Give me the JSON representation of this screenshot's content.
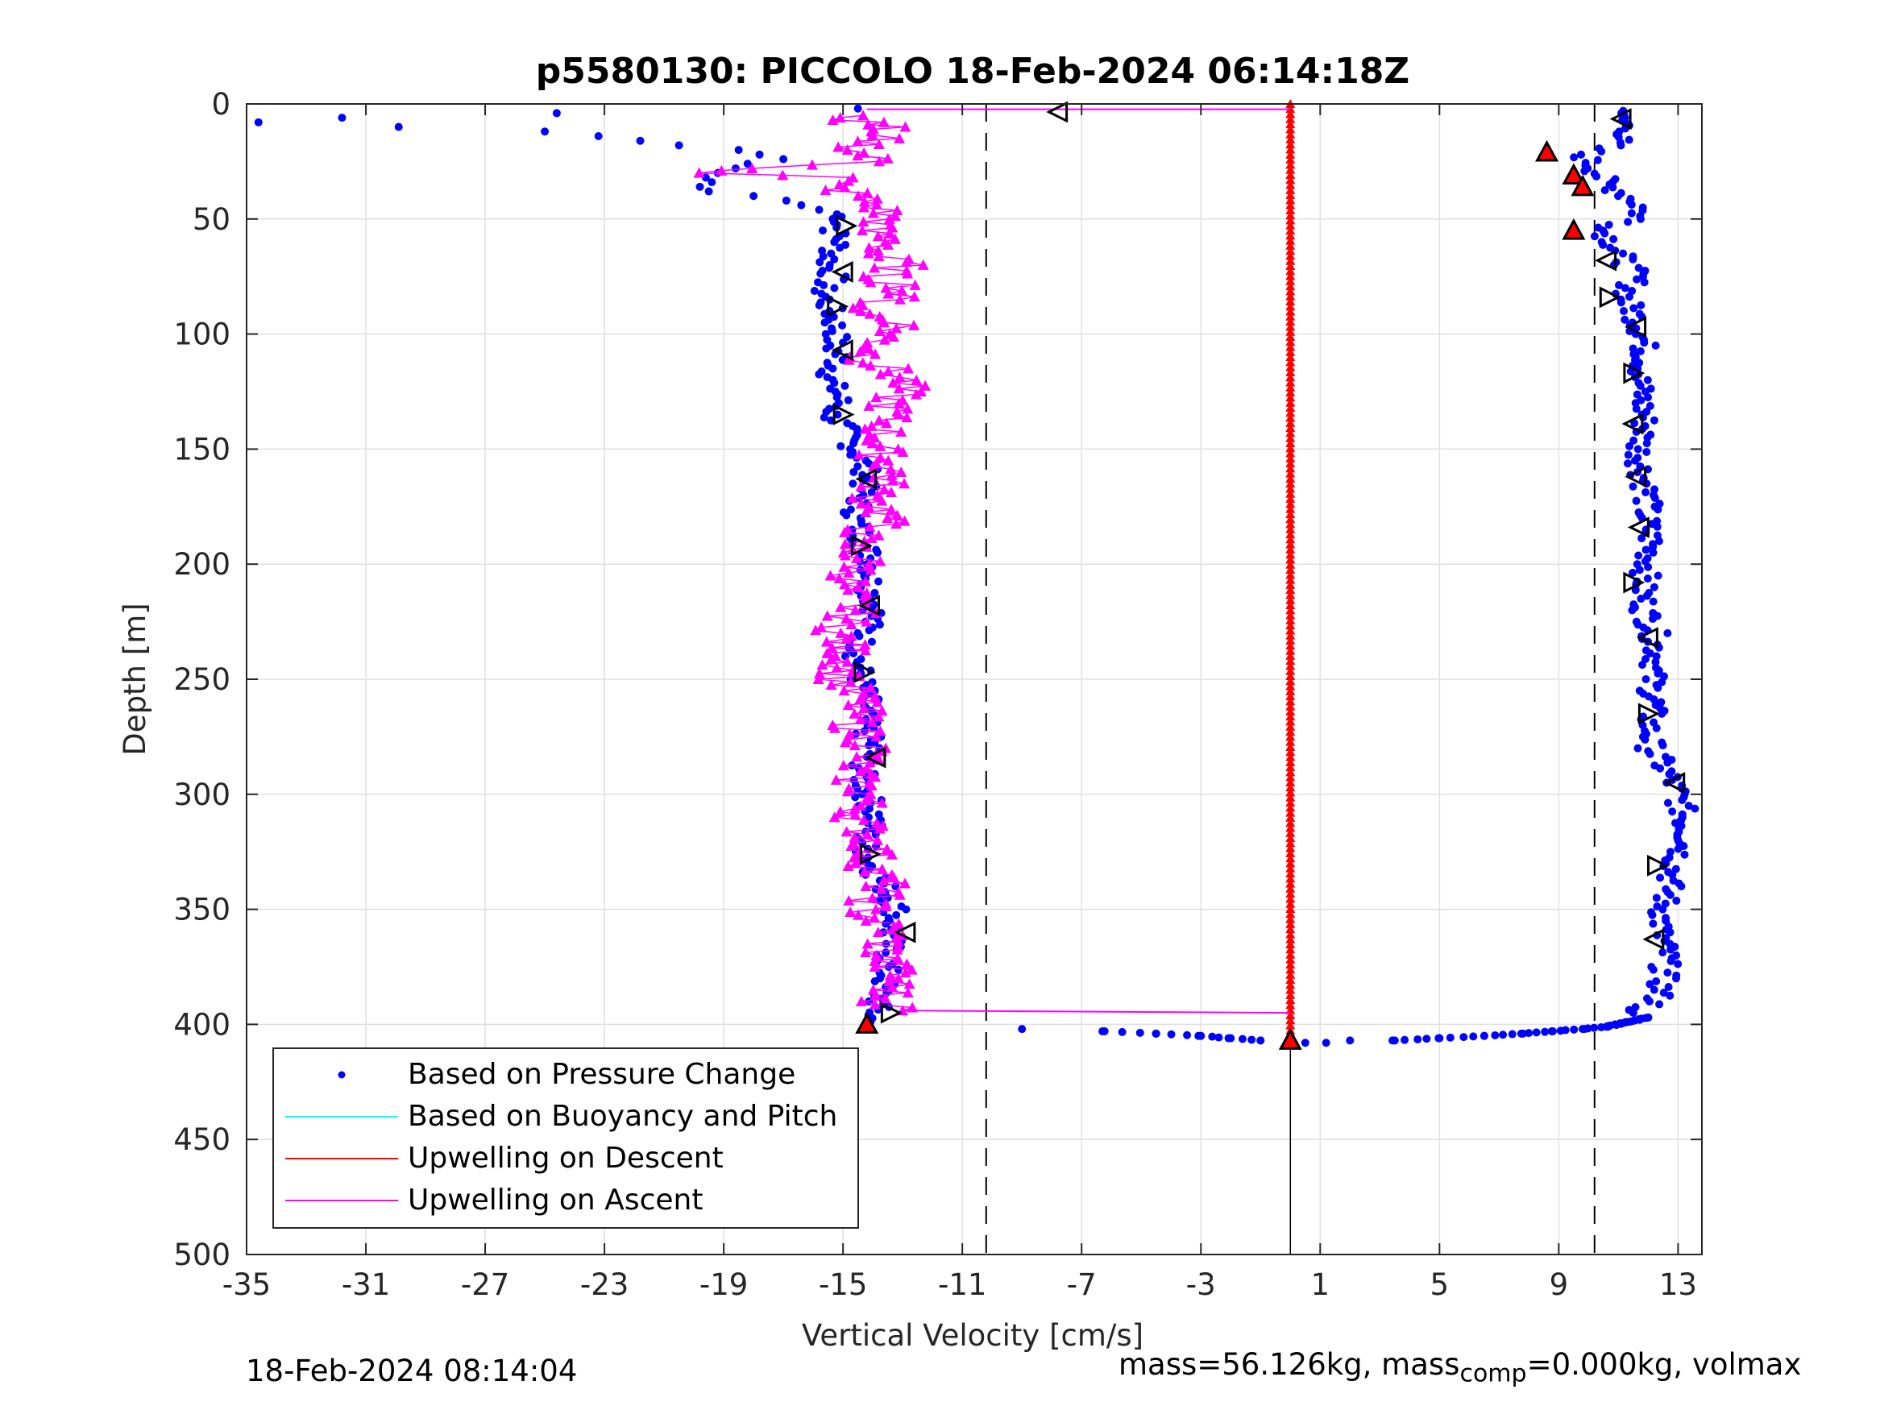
{
  "chart_data": {
    "type": "scatter",
    "title": "p5580130: PICCOLO 18-Feb-2024 06:14:18Z",
    "xlabel": "Vertical Velocity [cm/s]",
    "ylabel": "Depth [m]",
    "xlim": [
      -35,
      13.8
    ],
    "ylim": [
      0,
      500
    ],
    "y_reversed": true,
    "xticks": [
      -35,
      -31,
      -27,
      -23,
      -19,
      -15,
      -11,
      -7,
      -3,
      1,
      5,
      9,
      13
    ],
    "yticks": [
      0,
      50,
      100,
      150,
      200,
      250,
      300,
      350,
      400,
      450,
      500
    ],
    "grid": true,
    "legend_position": "bottom-left",
    "reference_lines_x": [
      -10.2,
      10.2,
      0
    ],
    "series": [
      {
        "name": "Based on Pressure Change",
        "color": "#0000ff",
        "style": "points",
        "descent": {
          "depth": [
            2,
            4,
            6,
            8,
            10,
            12,
            14,
            16,
            18,
            20,
            22,
            24,
            26,
            28,
            30,
            32,
            34,
            36,
            38,
            40,
            42,
            44,
            46,
            48,
            50,
            55,
            60,
            65,
            70,
            75,
            80,
            85,
            90,
            95,
            100,
            105,
            110,
            115,
            120,
            125,
            130,
            135,
            140,
            145,
            150,
            160,
            170,
            180,
            190,
            200,
            210,
            220,
            230,
            240,
            250,
            260,
            270,
            280,
            290,
            300,
            310,
            320,
            330,
            340,
            350,
            360,
            370,
            380,
            390,
            396,
            400
          ],
          "velocity": [
            -14.5,
            -24.6,
            -31.8,
            -34.6,
            -29.9,
            -25.0,
            -23.2,
            -21.8,
            -20.5,
            -18.5,
            -17.8,
            -17.0,
            -18.2,
            -18.6,
            -19.2,
            -19.6,
            -19.4,
            -19.8,
            -19.5,
            -18.0,
            -16.9,
            -16.4,
            -15.8,
            -15.2,
            -15.0,
            -15.3,
            -15.1,
            -15.4,
            -15.5,
            -15.3,
            -15.7,
            -15.6,
            -15.4,
            -15.3,
            -15.2,
            -15.4,
            -15.1,
            -15.3,
            -15.5,
            -15.2,
            -15.1,
            -15.4,
            -15.0,
            -14.8,
            -14.6,
            -14.2,
            -14.4,
            -14.6,
            -14.3,
            -14.0,
            -14.1,
            -13.9,
            -14.3,
            -14.5,
            -14.4,
            -14.2,
            -14.3,
            -14.0,
            -14.4,
            -14.2,
            -13.9,
            -14.3,
            -14.1,
            -13.6,
            -13.2,
            -13.4,
            -13.5,
            -13.6,
            -13.8,
            -14.0,
            -14.2
          ]
        },
        "ascent": {
          "depth": [
            3,
            5,
            8,
            12,
            18,
            22,
            28,
            35,
            40,
            45,
            50,
            55,
            60,
            65,
            70,
            75,
            80,
            85,
            90,
            95,
            100,
            110,
            120,
            130,
            140,
            150,
            160,
            170,
            180,
            190,
            200,
            210,
            220,
            230,
            240,
            250,
            260,
            270,
            280,
            290,
            300,
            310,
            320,
            330,
            340,
            350,
            360,
            370,
            380,
            390,
            395
          ],
          "velocity": [
            11.5,
            10.9,
            11.2,
            11.4,
            10.7,
            9.8,
            10.2,
            10.6,
            11.3,
            11.8,
            11.6,
            10.5,
            10.8,
            11.0,
            11.3,
            11.6,
            11.4,
            11.2,
            11.5,
            11.7,
            11.8,
            11.9,
            11.7,
            11.8,
            11.9,
            11.7,
            11.8,
            12.0,
            11.9,
            12.1,
            12.0,
            11.8,
            11.9,
            12.2,
            12.3,
            12.1,
            12.2,
            12.0,
            12.1,
            12.6,
            13.0,
            13.2,
            13.3,
            12.9,
            12.7,
            12.5,
            12.4,
            12.6,
            12.5,
            12.3,
            11.5
          ]
        },
        "bottom": {
          "depth": [
            402,
            403,
            404,
            405,
            406,
            407,
            408,
            408,
            407,
            407,
            406,
            405,
            404,
            403,
            402,
            401,
            399,
            397
          ],
          "velocity": [
            -9.0,
            -6.3,
            -4.5,
            -3.0,
            -2.0,
            -1.0,
            0.5,
            1.2,
            2.0,
            3.5,
            5.0,
            6.5,
            7.8,
            8.8,
            9.8,
            10.6,
            11.3,
            12.0
          ]
        }
      },
      {
        "name": "Based on Buoyancy and Pitch",
        "color": "#00ffff",
        "style": "line",
        "depth": [],
        "velocity": []
      },
      {
        "name": "Upwelling on Descent",
        "color": "#ff0000",
        "style": "line-markers",
        "depth": [
          0,
          20,
          40,
          60,
          80,
          100,
          150,
          200,
          250,
          300,
          350,
          400,
          405
        ],
        "velocity": [
          0,
          0,
          0,
          0,
          0,
          0,
          0,
          0,
          0,
          0,
          0,
          0,
          0
        ]
      },
      {
        "name": "Upwelling on Ascent",
        "color": "#ff00ff",
        "style": "line-markers",
        "depth": [
          2,
          4,
          6,
          8,
          10,
          12,
          15,
          20,
          25,
          28,
          30,
          32,
          35,
          40,
          45,
          50,
          55,
          60,
          65,
          70,
          75,
          80,
          85,
          90,
          95,
          100,
          110,
          120,
          130,
          140,
          150,
          160,
          170,
          180,
          190,
          200,
          210,
          220,
          230,
          240,
          250,
          260,
          270,
          280,
          290,
          300,
          310,
          320,
          330,
          340,
          350,
          360,
          370,
          380,
          390,
          394
        ],
        "velocity": [
          0,
          -14.2,
          -15.4,
          -14.0,
          -13.6,
          -14.8,
          -13.8,
          -14.6,
          -13.9,
          -17.5,
          -19.5,
          -15.0,
          -15.5,
          -14.5,
          -13.8,
          -13.5,
          -14.2,
          -13.2,
          -14.0,
          -13.0,
          -13.8,
          -12.8,
          -13.5,
          -14.6,
          -12.9,
          -13.5,
          -14.2,
          -12.9,
          -13.4,
          -13.6,
          -13.8,
          -13.3,
          -14.0,
          -13.5,
          -14.8,
          -14.3,
          -15.0,
          -14.6,
          -15.2,
          -14.8,
          -15.1,
          -14.4,
          -14.6,
          -14.0,
          -14.8,
          -14.2,
          -14.5,
          -14.0,
          -14.1,
          -13.6,
          -14.3,
          -13.4,
          -13.7,
          -13.2,
          -13.6,
          -13.0
        ]
      }
    ],
    "markers": {
      "hollow_triangles": [
        {
          "velocity": -7.8,
          "depth": 3.5,
          "dir": "left"
        },
        {
          "velocity": 11.1,
          "depth": 6.5,
          "dir": "left"
        },
        {
          "velocity": -14.9,
          "depth": 53,
          "dir": "right"
        },
        {
          "velocity": -15.0,
          "depth": 73,
          "dir": "left"
        },
        {
          "velocity": -15.2,
          "depth": 88,
          "dir": "right"
        },
        {
          "velocity": -15.0,
          "depth": 107,
          "dir": "left"
        },
        {
          "velocity": -15.0,
          "depth": 135,
          "dir": "right"
        },
        {
          "velocity": -14.2,
          "depth": 163,
          "dir": "left"
        },
        {
          "velocity": -14.4,
          "depth": 192,
          "dir": "right"
        },
        {
          "velocity": -14.1,
          "depth": 218,
          "dir": "left"
        },
        {
          "velocity": -14.3,
          "depth": 247,
          "dir": "right"
        },
        {
          "velocity": -13.9,
          "depth": 284,
          "dir": "left"
        },
        {
          "velocity": -14.1,
          "depth": 326,
          "dir": "right"
        },
        {
          "velocity": -12.9,
          "depth": 360,
          "dir": "left"
        },
        {
          "velocity": -13.4,
          "depth": 395,
          "dir": "right"
        },
        {
          "velocity": 10.6,
          "depth": 68,
          "dir": "left"
        },
        {
          "velocity": 10.7,
          "depth": 84,
          "dir": "right"
        },
        {
          "velocity": 11.6,
          "depth": 97,
          "dir": "left"
        },
        {
          "velocity": 11.5,
          "depth": 117,
          "dir": "right"
        },
        {
          "velocity": 11.5,
          "depth": 139,
          "dir": "left"
        },
        {
          "velocity": 11.6,
          "depth": 162,
          "dir": "left"
        },
        {
          "velocity": 11.7,
          "depth": 184,
          "dir": "left"
        },
        {
          "velocity": 11.5,
          "depth": 208,
          "dir": "right"
        },
        {
          "velocity": 12.0,
          "depth": 232,
          "dir": "left"
        },
        {
          "velocity": 12.0,
          "depth": 265,
          "dir": "right"
        },
        {
          "velocity": 12.9,
          "depth": 295,
          "dir": "left"
        },
        {
          "velocity": 12.3,
          "depth": 331,
          "dir": "right"
        },
        {
          "velocity": 12.2,
          "depth": 363,
          "dir": "left"
        }
      ],
      "filled_triangles": [
        {
          "velocity": 8.6,
          "depth": 21
        },
        {
          "velocity": 9.5,
          "depth": 31
        },
        {
          "velocity": 9.8,
          "depth": 36
        },
        {
          "velocity": 9.5,
          "depth": 55
        },
        {
          "velocity": -14.2,
          "depth": 400
        },
        {
          "velocity": 0,
          "depth": 407
        }
      ]
    }
  },
  "legend": {
    "pressure": "Based on Pressure Change",
    "buoyancy": "Based on Buoyancy and Pitch",
    "descent": "Upwelling on Descent",
    "ascent": "Upwelling on Ascent"
  },
  "footer": {
    "timestamp": "18-Feb-2024 08:14:04",
    "mass_text_a": "mass=56.126kg, mass",
    "mass_sub": "comp",
    "mass_text_b": "=0.000kg, volmax"
  }
}
